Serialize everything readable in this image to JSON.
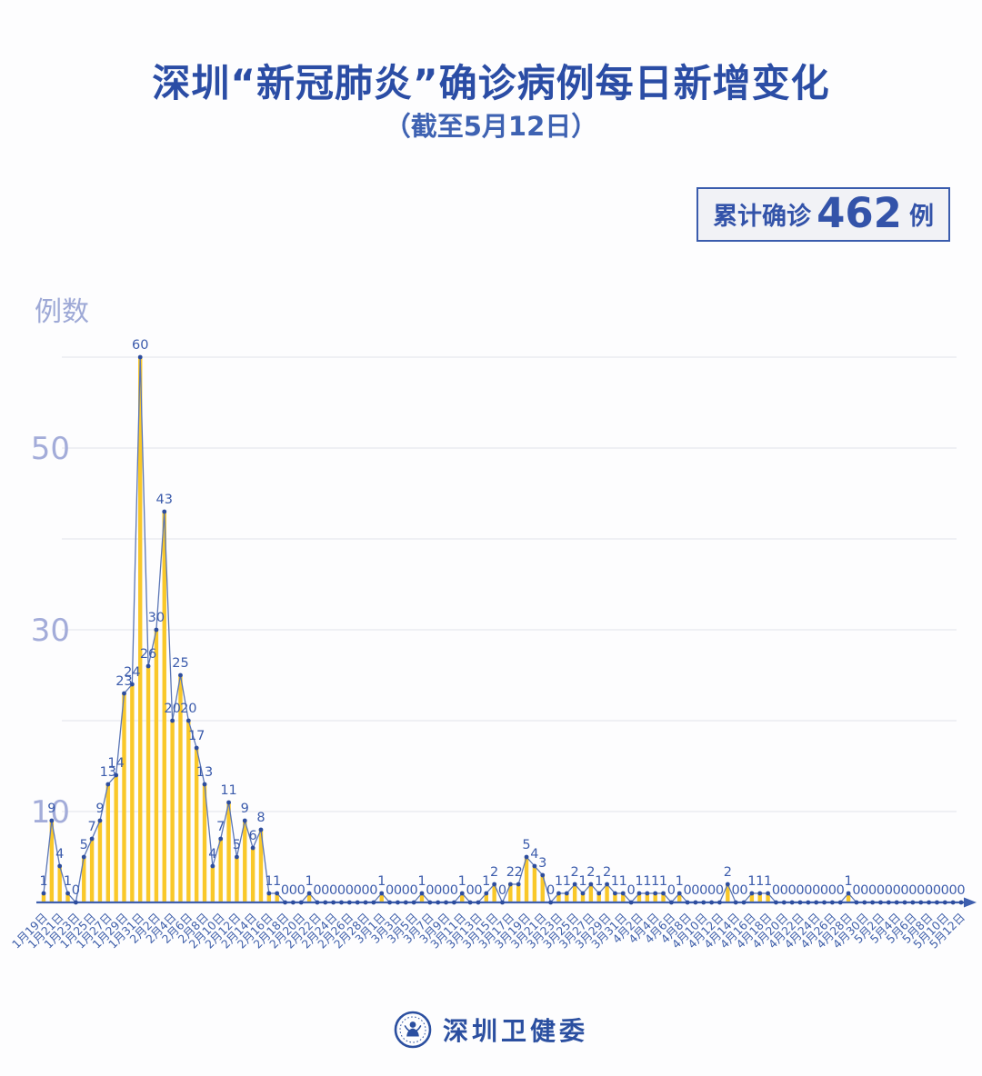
{
  "header": {
    "title": "深圳“新冠肺炎”确诊病例每日新增变化",
    "subtitle": "（截至5月12日）"
  },
  "badge": {
    "prefix": "累计确诊",
    "value": "462",
    "suffix": "例"
  },
  "footer": {
    "org_name": "深圳卫健委"
  },
  "colors": {
    "title_blue": "#2b4da5",
    "subtitle_blue": "#3e62b2",
    "badge_border": "#3a5cad",
    "badge_bg": "#f1f2f6",
    "bar_yellow": "#f9c82a",
    "line_blue": "#5b76b5",
    "dot_blue": "#2d4d9e",
    "value_label_blue": "#3c5cac",
    "date_label_blue": "#4161ab",
    "axis_blue": "#3e5fae",
    "y_label_periwinkle": "#a3acd9",
    "gridline_gray": "#e7e8ed"
  },
  "chart_data": {
    "type": "line",
    "style": "needle-bars-with-markers-and-point-labels",
    "title": "深圳“新冠肺炎”确诊病例每日新增变化（截至5月12日）",
    "xlabel": "",
    "ylabel": "例数",
    "y_unit": "例数",
    "ylim": [
      0,
      63
    ],
    "grid": true,
    "y_gridlines": [
      10,
      20,
      30,
      40,
      50,
      60
    ],
    "y_ticks_labeled": [
      50,
      30,
      10
    ],
    "total_cases": 462,
    "x_start": "1月19日",
    "x_end": "5月12日",
    "x_label_every": 2,
    "x_labels": [
      "1月19日",
      "1月21日",
      "1月23日",
      "1月25日",
      "1月27日",
      "1月29日",
      "1月31日",
      "2月2日",
      "2月4日",
      "2月6日",
      "2月8日",
      "2月10日",
      "2月12日",
      "2月14日",
      "2月16日",
      "2月18日",
      "2月20日",
      "2月22日",
      "2月24日",
      "2月26日",
      "2月28日",
      "3月1日",
      "3月3日",
      "3月5日",
      "3月7日",
      "3月9日",
      "3月11日",
      "3月13日",
      "3月15日",
      "3月17日",
      "3月19日",
      "3月21日",
      "3月23日",
      "3月25日",
      "3月27日",
      "3月29日",
      "3月31日",
      "4月2日",
      "4月4日",
      "4月6日",
      "4月8日",
      "4月10日",
      "4月12日",
      "4月14日",
      "4月16日",
      "4月18日",
      "4月20日",
      "4月22日",
      "4月24日",
      "4月26日",
      "4月28日",
      "4月30日",
      "5月2日",
      "5月4日",
      "5月6日",
      "5月8日",
      "5月10日",
      "5月12日"
    ],
    "values": [
      1,
      9,
      4,
      1,
      0,
      5,
      7,
      9,
      13,
      14,
      23,
      24,
      60,
      26,
      30,
      43,
      20,
      25,
      20,
      17,
      13,
      4,
      7,
      11,
      5,
      9,
      6,
      8,
      1,
      1,
      0,
      0,
      0,
      1,
      0,
      0,
      0,
      0,
      0,
      0,
      0,
      0,
      1,
      0,
      0,
      0,
      0,
      1,
      0,
      0,
      0,
      0,
      1,
      0,
      0,
      1,
      2,
      0,
      2,
      2,
      5,
      4,
      3,
      0,
      1,
      1,
      2,
      1,
      2,
      1,
      2,
      1,
      1,
      0,
      1,
      1,
      1,
      1,
      0,
      1,
      0,
      0,
      0,
      0,
      0,
      2,
      0,
      0,
      1,
      1,
      1,
      0,
      0,
      0,
      0,
      0,
      0,
      0,
      0,
      0,
      1,
      0,
      0,
      0,
      0,
      0,
      0,
      0,
      0,
      0,
      0,
      0,
      0,
      0,
      0
    ]
  }
}
